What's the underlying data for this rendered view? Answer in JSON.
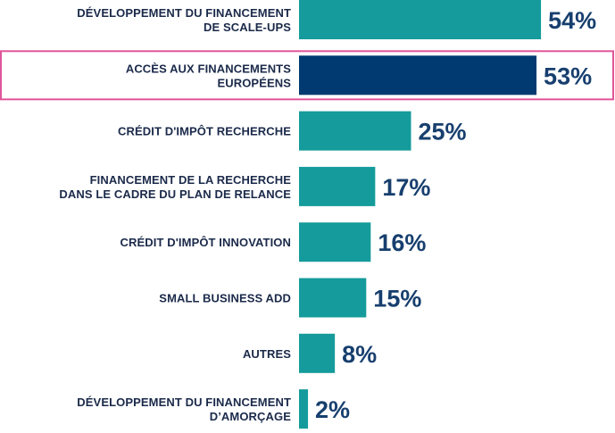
{
  "chart_data": {
    "type": "bar",
    "orientation": "horizontal",
    "categories": [
      [
        "DÉVELOPPEMENT DU FINANCEMENT",
        "DE  SCALE-UPS"
      ],
      [
        "ACCÈS AUX FINANCEMENTS",
        "EUROPÉENS"
      ],
      [
        "CRÉDIT D'IMPÔT RECHERCHE"
      ],
      [
        "FINANCEMENT DE LA RECHERCHE",
        "DANS LE CADRE DU PLAN DE RELANCE"
      ],
      [
        "CRÉDIT D'IMPÔT INNOVATION"
      ],
      [
        "SMALL BUSINESS ADD"
      ],
      [
        "AUTRES"
      ],
      [
        "DÉVELOPPEMENT DU FINANCEMENT",
        "D’AMORÇAGE"
      ]
    ],
    "values": [
      54,
      53,
      25,
      17,
      16,
      15,
      8,
      2
    ],
    "value_labels": [
      "54%",
      "53%",
      "25%",
      "17%",
      "16%",
      "15%",
      "8%",
      "2%"
    ],
    "unit": "%",
    "highlight_index": 1,
    "colors": {
      "bar": "#159b9b",
      "highlight_bar": "#003a70",
      "highlight_border": "#e0559a",
      "label_text": "#1b2a4a",
      "value_text": "#173f6e"
    },
    "grid": false,
    "legend": "none"
  }
}
